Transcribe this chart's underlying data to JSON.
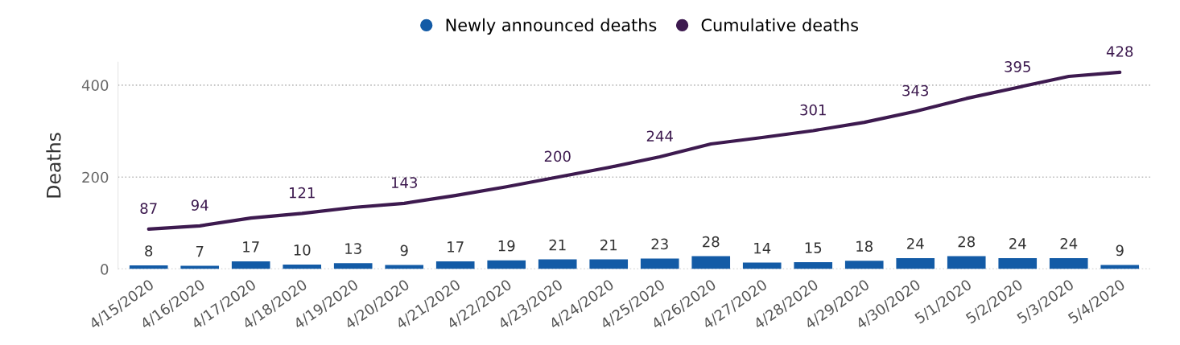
{
  "chart_data": {
    "type": "bar",
    "ylabel": "Deaths",
    "categories": [
      "4/15/2020",
      "4/16/2020",
      "4/17/2020",
      "4/18/2020",
      "4/19/2020",
      "4/20/2020",
      "4/21/2020",
      "4/22/2020",
      "4/23/2020",
      "4/24/2020",
      "4/25/2020",
      "4/26/2020",
      "4/27/2020",
      "4/28/2020",
      "4/29/2020",
      "4/30/2020",
      "5/1/2020",
      "5/2/2020",
      "5/3/2020",
      "5/4/2020"
    ],
    "series": [
      {
        "name": "Newly announced deaths",
        "color": "#135ba6",
        "values": [
          8,
          7,
          17,
          10,
          13,
          9,
          17,
          19,
          21,
          21,
          23,
          28,
          14,
          15,
          18,
          24,
          28,
          24,
          24,
          9
        ],
        "value_labels": [
          "8",
          "7",
          "17",
          "10",
          "13",
          "9",
          "17",
          "19",
          "21",
          "21",
          "23",
          "28",
          "14",
          "15",
          "18",
          "24",
          "28",
          "24",
          "24",
          "9"
        ]
      },
      {
        "name": "Cumulative deaths",
        "type": "line",
        "color": "#3d1a4f",
        "values": [
          87,
          94,
          111,
          121,
          134,
          143,
          160,
          179,
          200,
          221,
          244,
          272,
          286,
          301,
          319,
          343,
          371,
          395,
          419,
          428
        ],
        "value_labels": [
          "87",
          "94",
          null,
          "121",
          null,
          "143",
          null,
          null,
          "200",
          null,
          "244",
          null,
          null,
          "301",
          null,
          "343",
          null,
          "395",
          null,
          "428"
        ]
      }
    ],
    "ylim": [
      0,
      450
    ],
    "yticks": [
      0,
      200,
      400
    ],
    "grid": "y",
    "legend": "top",
    "marker": "none",
    "line_style": "solid"
  }
}
